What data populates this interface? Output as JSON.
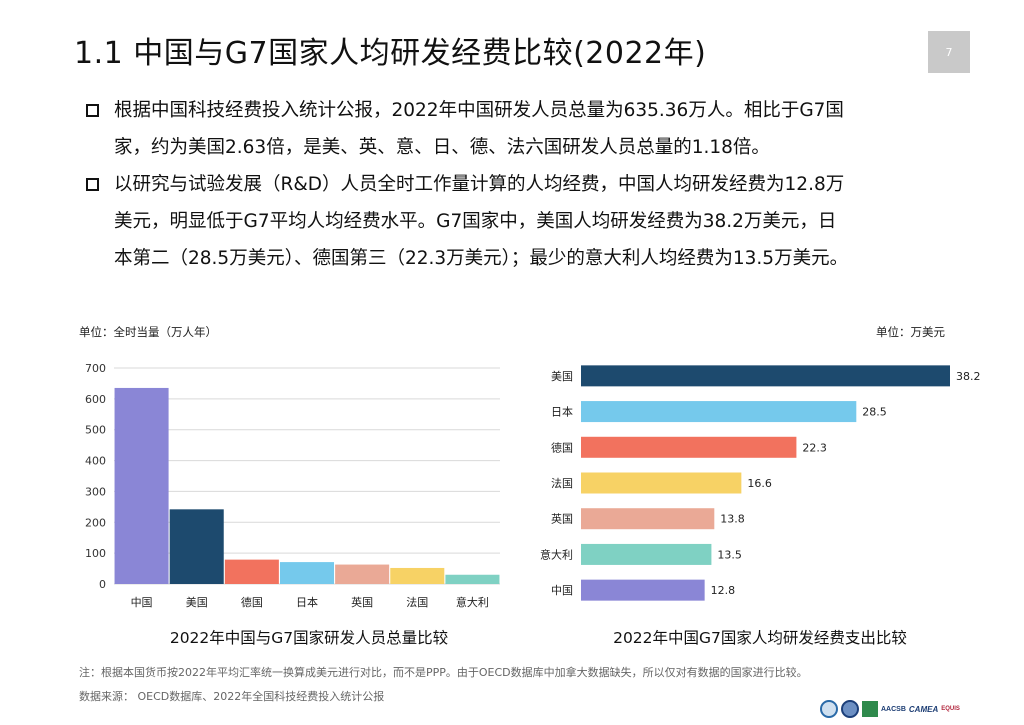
{
  "header": {
    "title": "1.1  中国与G7国家人均研发经费比较(2022年)",
    "page_number": "7"
  },
  "bullets": [
    {
      "lines": [
        "根据中国科技经费投入统计公报，2022年中国研发人员总量为635.36万人。相比于G7国",
        "家，约为美国2.63倍，是美、英、意、日、德、法六国研发人员总量的1.18倍。"
      ]
    },
    {
      "lines": [
        "以研究与试验发展（R&D）人员全时工作量计算的人均经费，中国人均研发经费为12.8万",
        "美元，明显低于G7平均人均经费水平。G7国家中，美国人均研发经费为38.2万美元，日",
        "本第二（28.5万美元）、德国第三（22.3万美元）；最少的意大利人均经费为13.5万美元。"
      ]
    }
  ],
  "chart_data": [
    {
      "type": "bar",
      "unit": "单位：全时当量（万人年）",
      "categories": [
        "中国",
        "美国",
        "德国",
        "日本",
        "英国",
        "法国",
        "意大利"
      ],
      "values": [
        635.36,
        242,
        79,
        71,
        63,
        52,
        30
      ],
      "colors": [
        "#8a86d6",
        "#1d4a6e",
        "#f2725e",
        "#75c9ec",
        "#eaa996",
        "#f7d265",
        "#7fd1c3"
      ],
      "ylim": [
        0,
        700
      ],
      "yticks": [
        "0",
        "100",
        "200",
        "300",
        "400",
        "500",
        "600",
        "700"
      ],
      "title": "2022年中国与G7国家研发人员总量比较",
      "grid": true
    },
    {
      "type": "bar",
      "orientation": "horizontal",
      "unit": "单位：万美元",
      "categories": [
        "美国",
        "日本",
        "德国",
        "法国",
        "英国",
        "意大利",
        "中国"
      ],
      "values": [
        38.2,
        28.5,
        22.3,
        16.6,
        13.8,
        13.5,
        12.8
      ],
      "value_labels": [
        "38.2",
        "28.5",
        "22.3",
        "16.6",
        "13.8",
        "13.5",
        "12.8"
      ],
      "colors": [
        "#1d4a6e",
        "#75c9ec",
        "#f2725e",
        "#f7d265",
        "#eaa996",
        "#7fd1c3",
        "#8a86d6"
      ],
      "xlim": [
        0,
        38.2
      ],
      "title": "2022年中国G7国家人均研发经费支出比较"
    }
  ],
  "footer": {
    "note": "注：根据本国货币按2022年平均汇率统一换算成美元进行对比，而不是PPP。由于OECD数据库中加拿大数据缺失，所以仅对有数据的国家进行比较。",
    "source": "数据来源： OECD数据库、2022年全国科技经费投入统计公报",
    "logo_labels": [
      "AACSB",
      "CAMEA",
      "EQUIS"
    ]
  }
}
